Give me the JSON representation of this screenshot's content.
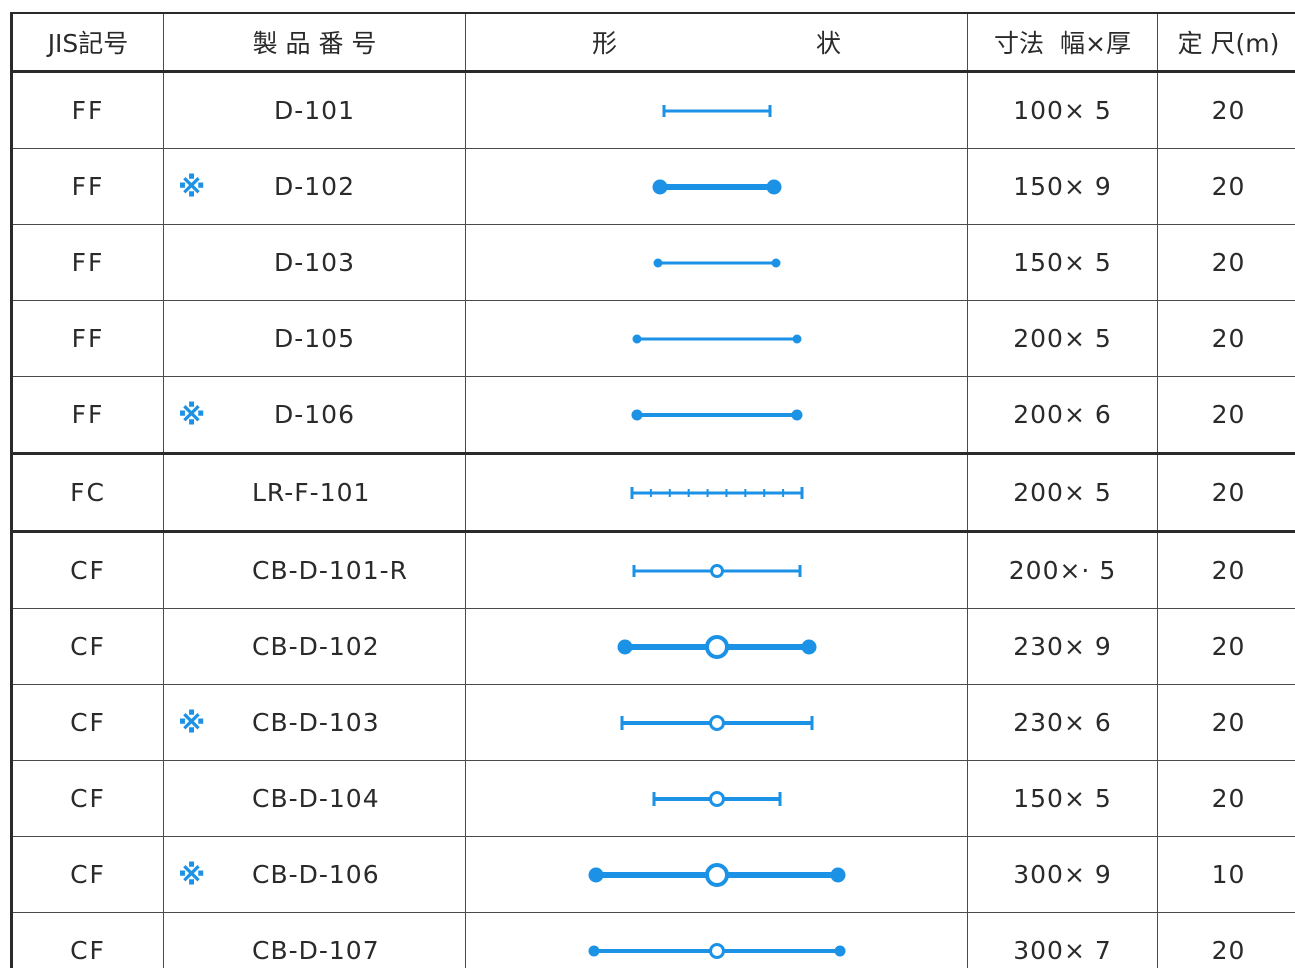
{
  "header": {
    "jis": "JIS記号",
    "product_no": "製 品 番 号",
    "shape_left": "形",
    "shape_right": "状",
    "dimension_a": "寸法",
    "dimension_b": "幅×厚",
    "length": "定 尺(m)"
  },
  "rows": [
    {
      "jis": "FF",
      "mark": "",
      "product": "D-101",
      "dim": "100× 5",
      "len": "20",
      "shape": "plain-tick",
      "halfwidth": 53,
      "weight": 3,
      "group_end": false
    },
    {
      "jis": "FF",
      "mark": "※",
      "product": "D-102",
      "dim": "150× 9",
      "len": "20",
      "shape": "plain-dot",
      "halfwidth": 57,
      "weight": 6,
      "group_end": false
    },
    {
      "jis": "FF",
      "mark": "",
      "product": "D-103",
      "dim": "150× 5",
      "len": "20",
      "shape": "plain-dot",
      "halfwidth": 59,
      "weight": 3,
      "group_end": false
    },
    {
      "jis": "FF",
      "mark": "",
      "product": "D-105",
      "dim": "200× 5",
      "len": "20",
      "shape": "plain-dot",
      "halfwidth": 80,
      "weight": 3,
      "group_end": false
    },
    {
      "jis": "FF",
      "mark": "※",
      "product": "D-106",
      "dim": "200× 6",
      "len": "20",
      "shape": "plain-dot",
      "halfwidth": 80,
      "weight": 4,
      "group_end": true
    },
    {
      "jis": "FC",
      "mark": "",
      "product": "LR-F-101",
      "dim": "200× 5",
      "len": "20",
      "shape": "ribbed",
      "halfwidth": 85,
      "weight": 3,
      "group_end": true
    },
    {
      "jis": "CF",
      "mark": "",
      "product": "CB-D-101-R",
      "dim": "200×· 5",
      "len": "20",
      "shape": "bulb-tick",
      "halfwidth": 83,
      "weight": 3,
      "group_end": false
    },
    {
      "jis": "CF",
      "mark": "",
      "product": "CB-D-102",
      "dim": "230× 9",
      "len": "20",
      "shape": "bulb-dot",
      "halfwidth": 92,
      "weight": 6,
      "group_end": false
    },
    {
      "jis": "CF",
      "mark": "※",
      "product": "CB-D-103",
      "dim": "230× 6",
      "len": "20",
      "shape": "bulb-tick",
      "halfwidth": 95,
      "weight": 4,
      "group_end": false
    },
    {
      "jis": "CF",
      "mark": "",
      "product": "CB-D-104",
      "dim": "150× 5",
      "len": "20",
      "shape": "bulb-tick",
      "halfwidth": 63,
      "weight": 4,
      "group_end": false
    },
    {
      "jis": "CF",
      "mark": "※",
      "product": "CB-D-106",
      "dim": "300× 9",
      "len": "10",
      "shape": "bulb-dot",
      "halfwidth": 121,
      "weight": 6,
      "group_end": false
    },
    {
      "jis": "CF",
      "mark": "",
      "product": "CB-D-107",
      "dim": "300× 7",
      "len": "20",
      "shape": "bulb-dot",
      "halfwidth": 123,
      "weight": 4,
      "group_end": false
    }
  ],
  "colors": {
    "accent": "#1c92e6",
    "text": "#2a2a2a",
    "rule": "#4a4a4a"
  }
}
